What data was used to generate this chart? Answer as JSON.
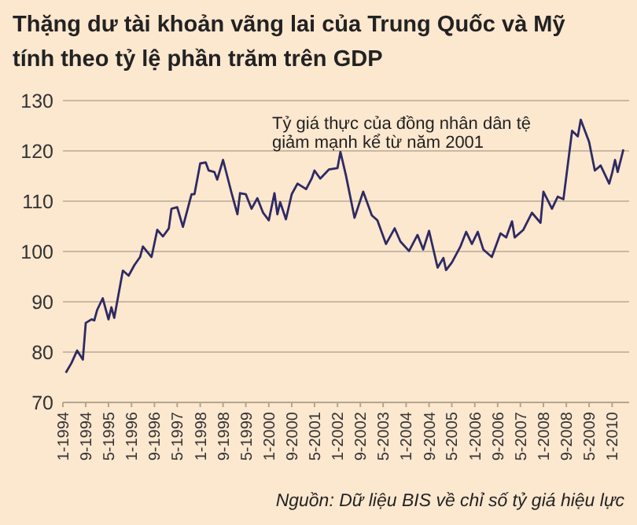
{
  "chart_data": {
    "type": "line",
    "title": "Thặng dư tài khoản vãng lai của Trung Quốc và Mỹ\ntính theo tỷ lệ phần trăm trên GDP",
    "annotations": [
      "Tỷ giá thực của đồng nhân dân tệ\ngiảm mạnh kể từ năm 2001",
      "Nguồn: Dữ liệu BIS về chỉ số tỷ giá hiệu lực"
    ],
    "x": [
      "1994-02",
      "1994-04",
      "1994-06",
      "1994-08",
      "1994-09",
      "1994-11",
      "1994-12",
      "1995-01",
      "1995-03",
      "1995-05",
      "1995-06",
      "1995-07",
      "1995-10",
      "1995-12",
      "1996-02",
      "1996-04",
      "1996-05",
      "1996-08",
      "1996-10",
      "1996-12",
      "1997-02",
      "1997-03",
      "1997-05",
      "1997-07",
      "1997-10",
      "1997-11",
      "1998-01",
      "1998-03",
      "1998-04",
      "1998-06",
      "1998-07",
      "1998-09",
      "1998-12",
      "1999-02",
      "1999-03",
      "1999-05",
      "1999-07",
      "1999-09",
      "1999-11",
      "2000-01",
      "2000-03",
      "2000-04",
      "2000-05",
      "2000-07",
      "2000-09",
      "2000-11",
      "2001-02",
      "2001-04",
      "2001-05",
      "2001-07",
      "2001-10",
      "2002-01",
      "2002-02",
      "2002-04",
      "2002-07",
      "2002-10",
      "2003-01",
      "2003-03",
      "2003-06",
      "2003-09",
      "2003-11",
      "2004-02",
      "2004-05",
      "2004-07",
      "2004-09",
      "2004-12",
      "2005-02",
      "2005-03",
      "2005-05",
      "2005-08",
      "2005-10",
      "2005-12",
      "2006-02",
      "2006-04",
      "2006-07",
      "2006-10",
      "2006-12",
      "2007-02",
      "2007-03",
      "2007-06",
      "2007-09",
      "2007-12",
      "2008-01",
      "2008-04",
      "2008-06",
      "2008-08",
      "2008-11",
      "2009-01",
      "2009-02",
      "2009-05",
      "2009-07",
      "2009-09",
      "2009-12",
      "2010-01",
      "2010-02",
      "2010-03",
      "2010-05"
    ],
    "series": [
      {
        "color": "#2e2a63",
        "values": [
          75.9,
          77.8,
          80.3,
          78.5,
          85.8,
          86.5,
          86.3,
          88.4,
          90.7,
          86.5,
          88.9,
          86.8,
          96.2,
          95.2,
          97.3,
          98.9,
          101,
          98.9,
          104.3,
          103,
          104.6,
          108.5,
          108.8,
          104.9,
          111.4,
          111.4,
          117.5,
          117.7,
          116.1,
          115.8,
          114.3,
          118.2,
          111.6,
          107.4,
          111.6,
          111.4,
          108.5,
          110.6,
          107.7,
          106.2,
          111.6,
          107.4,
          109.8,
          106.4,
          111.4,
          113.5,
          112.4,
          114.5,
          116.1,
          114.5,
          116.3,
          116.6,
          119.8,
          115.1,
          106.7,
          111.9,
          107.2,
          106.2,
          101.5,
          104.6,
          102,
          100.1,
          103.3,
          100.4,
          104.1,
          96.8,
          98.7,
          96.3,
          97.8,
          101,
          103.9,
          101.5,
          103.9,
          100.4,
          98.9,
          103.6,
          102.8,
          106,
          102.8,
          104.3,
          107.7,
          105.7,
          111.9,
          108.5,
          110.9,
          110.4,
          124,
          122.9,
          126.2,
          121.8,
          116.1,
          117.1,
          113.5,
          115.6,
          118.2,
          115.8,
          120.3
        ]
      }
    ],
    "xlim": [
      "1994-01",
      "2010-07"
    ],
    "xticks": [
      {
        "value": "1994-01",
        "label": "1-1994"
      },
      {
        "value": "1994-09",
        "label": "9-1994"
      },
      {
        "value": "1995-05",
        "label": "5-1995"
      },
      {
        "value": "1996-01",
        "label": "1-1996"
      },
      {
        "value": "1996-09",
        "label": "9-1996"
      },
      {
        "value": "1997-05",
        "label": "5-1997"
      },
      {
        "value": "1998-01",
        "label": "1-1998"
      },
      {
        "value": "1998-09",
        "label": "9-1998"
      },
      {
        "value": "1999-05",
        "label": "5-1999"
      },
      {
        "value": "2000-01",
        "label": "1-2000"
      },
      {
        "value": "2000-09",
        "label": "9-2000"
      },
      {
        "value": "2001-05",
        "label": "5-2001"
      },
      {
        "value": "2002-01",
        "label": "1-2002"
      },
      {
        "value": "2002-09",
        "label": "9-2002"
      },
      {
        "value": "2003-05",
        "label": "5-2003"
      },
      {
        "value": "2004-01",
        "label": "1-2004"
      },
      {
        "value": "2004-09",
        "label": "9-2004"
      },
      {
        "value": "2005-05",
        "label": "5-2005"
      },
      {
        "value": "2006-01",
        "label": "1-2006"
      },
      {
        "value": "2006-09",
        "label": "9-2006"
      },
      {
        "value": "2007-05",
        "label": "5-2007"
      },
      {
        "value": "2008-01",
        "label": "1-2008"
      },
      {
        "value": "2008-09",
        "label": "9-2008"
      },
      {
        "value": "2009-05",
        "label": "5-2009"
      },
      {
        "value": "2010-01",
        "label": "1-2010"
      }
    ],
    "ylim": [
      70,
      130
    ],
    "yticks": [
      70,
      80,
      90,
      100,
      110,
      120,
      130
    ],
    "grid": "y"
  }
}
